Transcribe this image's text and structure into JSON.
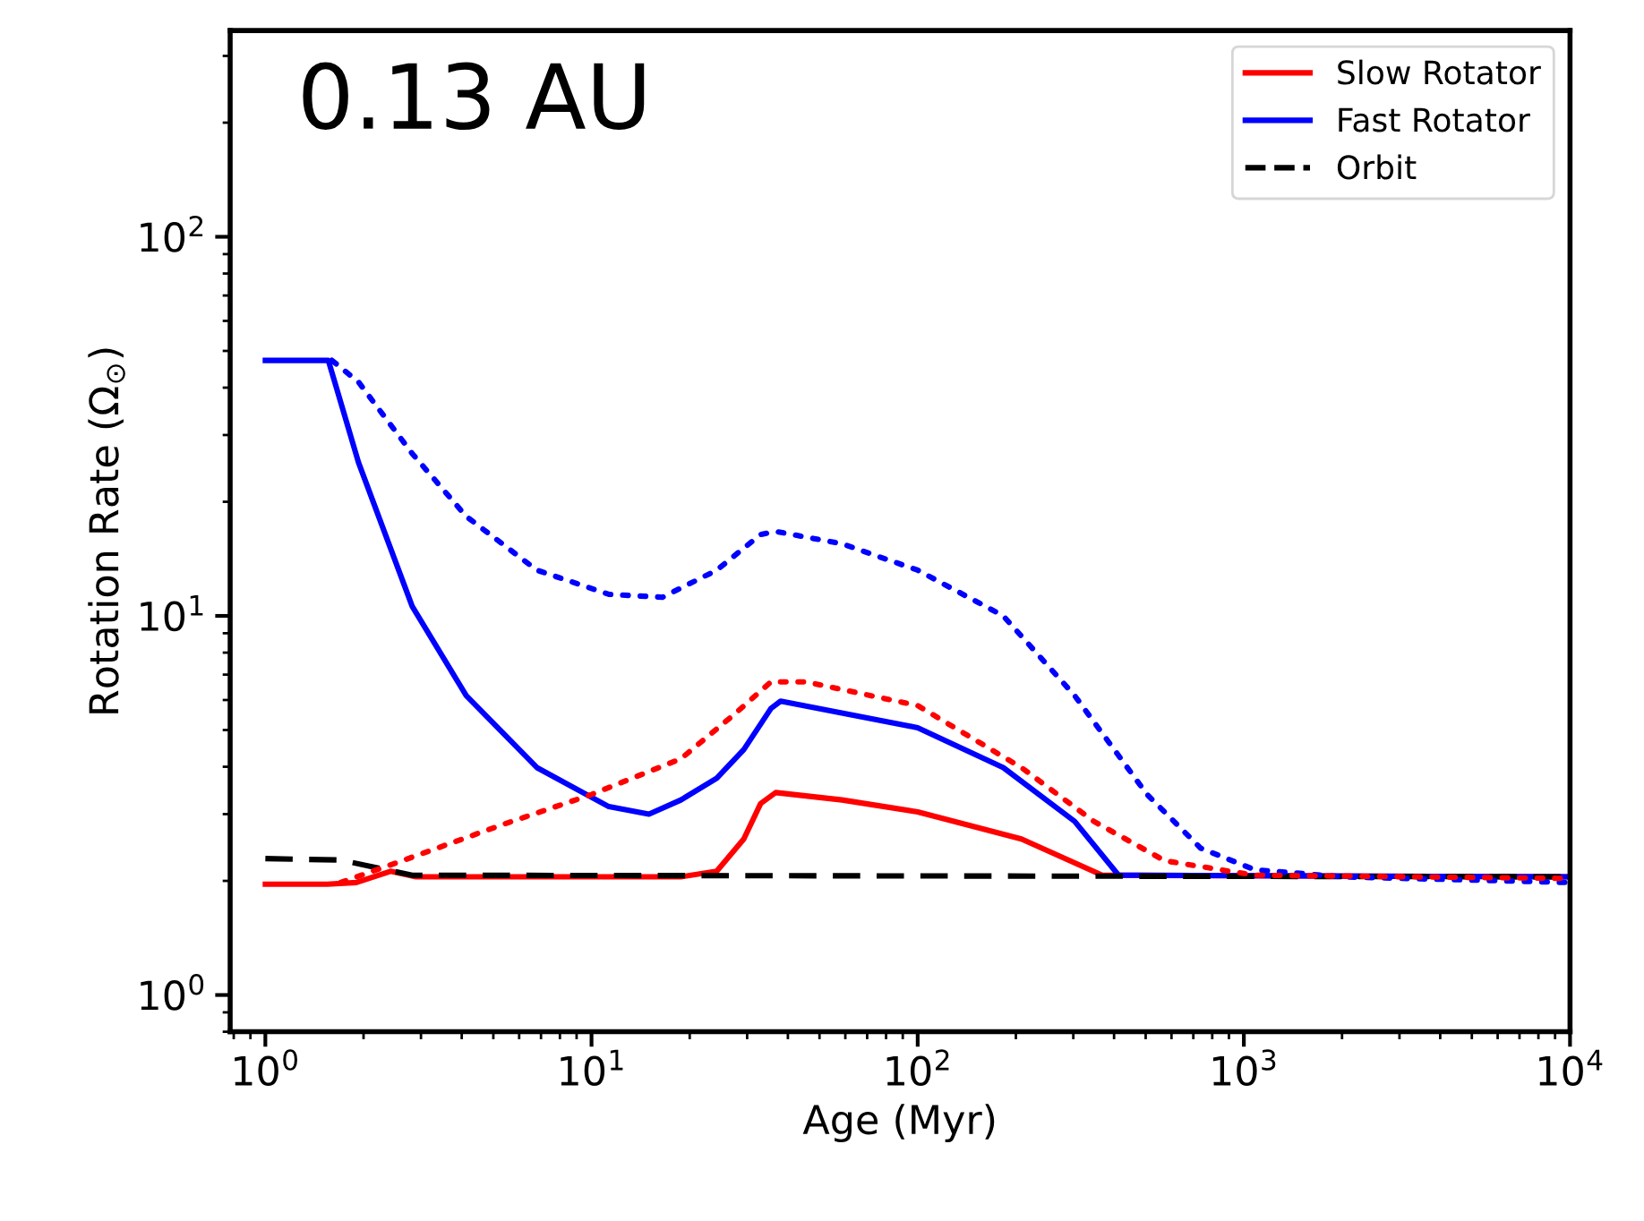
{
  "chart_data": {
    "type": "line",
    "xlabel": "Age (Myr)",
    "ylabel": "Rotation Rate (Ω$_{⊙}$)",
    "annotations": [
      "0.13 AU"
    ],
    "log": "xy",
    "xlim": [
      0.78,
      10000
    ],
    "ylim": [
      0.8,
      350
    ],
    "xticks": [
      {
        "value": 1,
        "label": "10$^{0}$"
      },
      {
        "value": 10,
        "label": "10$^{1}$"
      },
      {
        "value": 100,
        "label": "10$^{2}$"
      },
      {
        "value": 1000,
        "label": "10$^{3}$"
      },
      {
        "value": 10000,
        "label": "10$^{4}$"
      }
    ],
    "yticks": [
      {
        "value": 1,
        "label": "10$^{0}$"
      },
      {
        "value": 10,
        "label": "10$^{1}$"
      },
      {
        "value": 100,
        "label": "10$^{2}$"
      }
    ],
    "legend": "top right",
    "grid": false,
    "series": [
      {
        "name": "Slow Rotator",
        "color": "#ff0000",
        "line_style": "solid",
        "x": [
          1,
          1.55,
          1.9,
          2.42,
          2.9,
          18.8,
          24.2,
          29.3,
          33,
          36.7,
          58.6,
          100,
          208,
          368,
          10000
        ],
        "values": [
          1.96,
          1.96,
          1.98,
          2.12,
          2.05,
          2.05,
          2.12,
          2.58,
          3.2,
          3.42,
          3.27,
          3.04,
          2.58,
          2.07,
          2.05
        ]
      },
      {
        "name": "Fast Rotator",
        "color": "#0000ff",
        "line_style": "solid",
        "x": [
          1,
          1.56,
          1.93,
          2.82,
          4.13,
          6.8,
          11.3,
          15,
          18.8,
          24.2,
          29.3,
          35.5,
          38,
          100,
          183,
          303,
          413,
          10000
        ],
        "values": [
          47.2,
          47.2,
          25.4,
          10.6,
          6.16,
          3.98,
          3.14,
          3.0,
          3.27,
          3.73,
          4.44,
          5.7,
          5.96,
          5.07,
          3.98,
          2.87,
          2.07,
          2.05
        ]
      },
      {
        "name": "Orbit",
        "color": "#000000",
        "line_style": "dashed",
        "x": [
          1,
          1.7,
          2.82,
          10000
        ],
        "values": [
          2.29,
          2.27,
          2.07,
          2.05
        ]
      },
      {
        "color": "#0000ff",
        "line_style": "dotted",
        "x": [
          1.6,
          1.93,
          2.82,
          4.13,
          6.8,
          11.3,
          16.5,
          24.2,
          33,
          36.7,
          58.6,
          100,
          183,
          303,
          505,
          737,
          1080,
          2000,
          10000
        ],
        "values": [
          47.2,
          41.4,
          26.8,
          18.3,
          13.2,
          11.4,
          11.2,
          13.2,
          16.4,
          16.7,
          15.5,
          13.2,
          10,
          6.16,
          3.38,
          2.44,
          2.14,
          2.05,
          1.98
        ]
      },
      {
        "color": "#ff0000",
        "line_style": "dotted",
        "x": [
          1.7,
          2.82,
          5.3,
          10,
          18.8,
          27.4,
          35.5,
          45.4,
          100,
          208,
          347,
          572,
          1080,
          10000
        ],
        "values": [
          1.98,
          2.31,
          2.81,
          3.38,
          4.2,
          5.5,
          6.7,
          6.7,
          5.8,
          3.98,
          2.87,
          2.26,
          2.07,
          2.03
        ]
      }
    ]
  }
}
